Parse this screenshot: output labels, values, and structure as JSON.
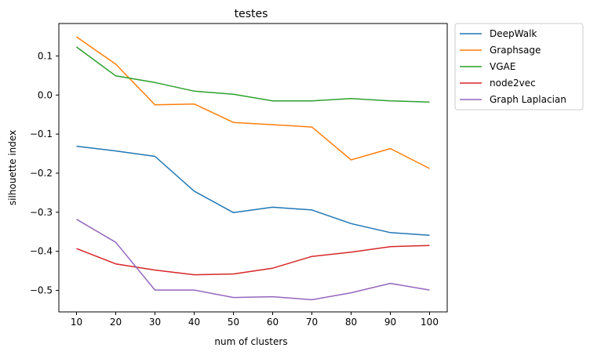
{
  "chart_data": {
    "type": "line",
    "title": "testes",
    "xlabel": "num of clusters",
    "ylabel": "silhouette index",
    "x": [
      10,
      20,
      30,
      40,
      50,
      60,
      70,
      80,
      90,
      100
    ],
    "xticks": [
      "10",
      "20",
      "30",
      "40",
      "50",
      "60",
      "70",
      "80",
      "90",
      "100"
    ],
    "yticks": [
      0.1,
      0.0,
      -0.1,
      -0.2,
      -0.3,
      -0.4,
      -0.5
    ],
    "ytick_labels": [
      "0.1",
      "0.0",
      "−0.1",
      "−0.2",
      "−0.3",
      "−0.4",
      "−0.5"
    ],
    "xlim": [
      5.5,
      104.5
    ],
    "ylim": [
      -0.555,
      0.183
    ],
    "grid": false,
    "legend_position": "outside-top-right",
    "series": [
      {
        "name": "DeepWalk",
        "color": "#1f77b4",
        "values": [
          -0.131,
          -0.143,
          -0.157,
          -0.246,
          -0.301,
          -0.287,
          -0.294,
          -0.329,
          -0.352,
          -0.359
        ]
      },
      {
        "name": "Graphsage",
        "color": "#ff7f0e",
        "values": [
          0.149,
          0.079,
          -0.025,
          -0.023,
          -0.07,
          -0.076,
          -0.082,
          -0.166,
          -0.137,
          -0.188
        ]
      },
      {
        "name": "VGAE",
        "color": "#2ca02c",
        "values": [
          0.123,
          0.049,
          0.032,
          0.01,
          0.002,
          -0.015,
          -0.015,
          -0.009,
          -0.015,
          -0.018
        ]
      },
      {
        "name": "node2vec",
        "color": "#d62728",
        "values": [
          -0.393,
          -0.432,
          -0.448,
          -0.46,
          -0.458,
          -0.443,
          -0.413,
          -0.402,
          -0.388,
          -0.385
        ]
      },
      {
        "name": "Graph Laplacian",
        "color": "#9467bd",
        "values": [
          -0.318,
          -0.377,
          -0.499,
          -0.499,
          -0.518,
          -0.516,
          -0.524,
          -0.506,
          -0.482,
          -0.499
        ]
      }
    ]
  }
}
